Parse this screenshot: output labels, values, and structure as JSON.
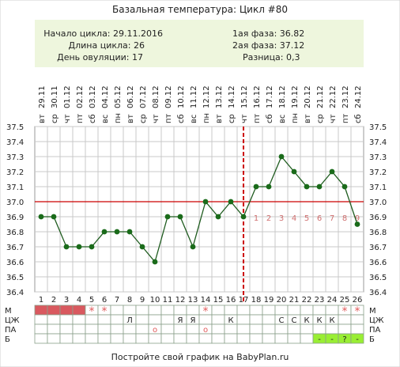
{
  "title": "Базальная температура: Цикл #80",
  "info": {
    "cycle_start": "Начало цикла: 29.11.2016",
    "cycle_length": "Длина цикла: 26",
    "ovulation_day": "День овуляции: 17",
    "phase1": "1ая фаза: 36.82",
    "phase2": "2ая фаза: 37.12",
    "difference": "Разница: 0,3"
  },
  "footer": "Постройте свой график на BabyPlan.ru",
  "colors": {
    "line": "#1f5c1f",
    "point": "#1a6b1a",
    "coverline": "#cc0000",
    "ovulation_line": "#cc0000",
    "menses": "#d9595f",
    "star": "#e05a5a",
    "b_green": "#99ee33",
    "info_bg": "#eef6dd"
  },
  "chart_data": {
    "type": "line",
    "dates": [
      "29.11",
      "30.11",
      "01.12",
      "02.12",
      "03.12",
      "04.12",
      "05.12",
      "06.12",
      "07.12",
      "08.12",
      "09.12",
      "10.12",
      "11.12",
      "12.12",
      "13.12",
      "14.12",
      "15.12",
      "16.12",
      "17.12",
      "18.12",
      "19.12",
      "20.12",
      "21.12",
      "22.12",
      "23.12",
      "24.12"
    ],
    "weekdays": [
      "вт",
      "ср",
      "чт",
      "пт",
      "сб",
      "вс",
      "пн",
      "вт",
      "ср",
      "чт",
      "пт",
      "сб",
      "вс",
      "пн",
      "вт",
      "ср",
      "чт",
      "пт",
      "сб",
      "вс",
      "пн",
      "вт",
      "ср",
      "чт",
      "пт",
      "сб"
    ],
    "days": [
      "1",
      "2",
      "3",
      "4",
      "5",
      "6",
      "7",
      "8",
      "9",
      "10",
      "11",
      "12",
      "13",
      "14",
      "15",
      "16",
      "17",
      "18",
      "19",
      "20",
      "21",
      "22",
      "23",
      "24",
      "25",
      "26"
    ],
    "values": [
      36.9,
      36.9,
      36.7,
      36.7,
      36.7,
      36.8,
      36.8,
      36.8,
      36.7,
      36.6,
      36.9,
      36.9,
      36.7,
      37.0,
      36.9,
      37.0,
      36.9,
      37.1,
      37.1,
      37.3,
      37.2,
      37.1,
      37.1,
      37.2,
      37.1,
      36.85
    ],
    "y_ticks": [
      "37.5",
      "37.4",
      "37.3",
      "37.2",
      "37.1",
      "37.0",
      "36.9",
      "36.8",
      "36.7",
      "36.6",
      "36.5",
      "36.4"
    ],
    "ylim": [
      36.4,
      37.5
    ],
    "coverline": 37.0,
    "ovulation_day": 17,
    "post_ovulation_labels": [
      "1",
      "2",
      "3",
      "4",
      "5",
      "6",
      "7",
      "8",
      "9"
    ],
    "grid": true
  },
  "rows": {
    "labels": [
      "М",
      "ЦЖ",
      "ПА",
      "Б"
    ],
    "m": [
      "1",
      "1",
      "1",
      "1",
      "*",
      "*",
      "",
      "",
      "",
      "",
      "",
      "",
      "",
      "*",
      "",
      "",
      "",
      "",
      "",
      "",
      "",
      "",
      "",
      "",
      "*",
      "*"
    ],
    "czh": [
      "",
      "",
      "",
      "",
      "",
      "",
      "",
      "Л",
      "",
      "",
      "",
      "Я",
      "Я",
      "",
      "",
      "К",
      "",
      "",
      "",
      "С",
      "С",
      "К",
      "К",
      "К",
      "",
      ""
    ],
    "pa": [
      "",
      "",
      "",
      "",
      "",
      "",
      "",
      "",
      "",
      "о",
      "",
      "",
      "",
      "о",
      "",
      "",
      "",
      "",
      "",
      "",
      "",
      "",
      "",
      "",
      "",
      ""
    ],
    "b": [
      "",
      "",
      "",
      "",
      "",
      "",
      "",
      "",
      "",
      "",
      "",
      "",
      "",
      "",
      "",
      "",
      "",
      "",
      "",
      "",
      "",
      "",
      "-",
      "-",
      "?",
      "-"
    ]
  }
}
